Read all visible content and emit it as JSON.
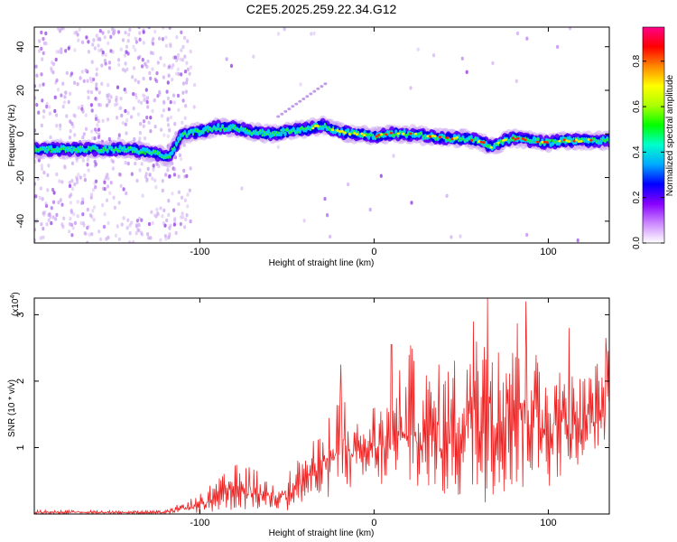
{
  "figure_title": "C2E5.2025.259.22.34.G12",
  "chart_data": [
    {
      "type": "heatmap",
      "title": "C2E5.2025.259.22.34.G12",
      "xlabel": "Height of straight line (km)",
      "ylabel": "Frequency (Hz)",
      "xlim": [
        -195,
        135
      ],
      "ylim": [
        -50,
        49
      ],
      "x_ticks": [
        -100,
        0,
        100
      ],
      "x_tick_labels": [
        "-100",
        "0",
        "100"
      ],
      "y_ticks": [
        -40,
        -20,
        0,
        20,
        40
      ],
      "y_tick_labels": [
        "-40",
        "-20",
        "0",
        "20",
        "40"
      ],
      "ridge": {
        "description_x": [
          -195,
          -180,
          -160,
          -140,
          -125,
          -118,
          -110,
          -100,
          -90,
          -80,
          -70,
          -60,
          -50,
          -40,
          -30,
          -20,
          -10,
          0,
          10,
          20,
          30,
          40,
          50,
          60,
          68,
          75,
          80,
          90,
          100,
          110,
          120,
          135
        ],
        "frequency_hz": [
          -7,
          -7,
          -7,
          -7,
          -9,
          -11,
          0,
          1,
          3,
          3,
          1,
          0,
          1,
          2,
          4,
          1,
          0,
          -1,
          0,
          0,
          -1,
          -2,
          -2,
          -3,
          -6,
          -3,
          -2,
          -3,
          -4,
          -3,
          -3,
          -3
        ]
      },
      "side_branch": {
        "x": [
          -55,
          -28
        ],
        "frequency_hz": [
          8,
          23
        ]
      },
      "colorbar": {
        "label": "Normalized spectral amplitude",
        "range": [
          0,
          0.95
        ],
        "ticks": [
          0,
          0.2,
          0.4,
          0.6,
          0.8
        ],
        "tick_labels": [
          "0.0",
          "0.2",
          "0.4",
          "0.6",
          "0.8"
        ],
        "colors": [
          "#ffffff",
          "#cc88ff",
          "#8800ff",
          "#0000ff",
          "#00aaff",
          "#00ffcc",
          "#00ff00",
          "#aaff00",
          "#ffff00",
          "#ff8800",
          "#ff0000",
          "#ff0088"
        ]
      }
    },
    {
      "type": "line",
      "xlabel": "Height of straight line (km)",
      "ylabel": "SNR (10 * v/v)",
      "y_multiplier": "(x10",
      "y_multiplier_exp": "4",
      "y_multiplier_close": ")",
      "xlim": [
        -195,
        135
      ],
      "ylim": [
        0,
        3.25
      ],
      "x_ticks": [
        -100,
        0,
        100
      ],
      "x_tick_labels": [
        "-100",
        "0",
        "100"
      ],
      "y_ticks": [
        1,
        2,
        3
      ],
      "y_tick_labels": [
        "1",
        "2",
        "3"
      ],
      "color": "#ee2222",
      "envelope": {
        "x": [
          -195,
          -120,
          -100,
          -80,
          -70,
          -60,
          -50,
          -40,
          -30,
          -20,
          -10,
          0,
          10,
          20,
          30,
          40,
          50,
          60,
          70,
          80,
          90,
          100,
          110,
          120,
          135
        ],
        "upper": [
          0.06,
          0.05,
          0.3,
          0.75,
          0.72,
          0.5,
          0.6,
          1.0,
          1.2,
          2.0,
          1.4,
          1.7,
          1.8,
          2.6,
          2.2,
          2.3,
          2.5,
          3.2,
          2.9,
          3.1,
          2.7,
          2.5,
          2.2,
          2.1,
          2.5
        ],
        "lower": [
          0.0,
          0.0,
          0.0,
          0.05,
          0.05,
          0.05,
          0.05,
          0.1,
          0.2,
          0.3,
          0.4,
          0.4,
          0.4,
          0.3,
          0.3,
          0.2,
          0.2,
          0.1,
          0.3,
          0.3,
          0.4,
          0.4,
          0.6,
          0.8,
          1.0
        ]
      },
      "peaks": [
        {
          "x": -19,
          "y": 2.25
        },
        {
          "x": 10,
          "y": 2.55
        },
        {
          "x": 57,
          "y": 2.9
        },
        {
          "x": 65,
          "y": 3.25
        },
        {
          "x": 87,
          "y": 3.2
        },
        {
          "x": 112,
          "y": 2.8
        },
        {
          "x": 133,
          "y": 2.65
        }
      ]
    }
  ]
}
